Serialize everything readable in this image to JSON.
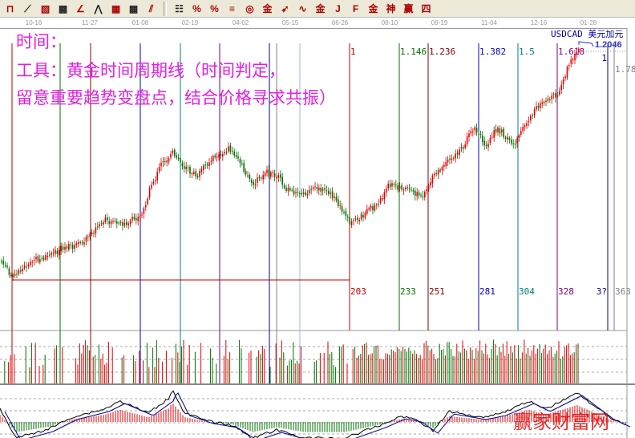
{
  "toolbar": {
    "buttons": [
      {
        "name": "cursor-tool",
        "glyph": "⊓"
      },
      {
        "name": "fan-line-tool",
        "glyph": "⟋"
      },
      {
        "name": "gann-box-tool",
        "glyph": "▧"
      },
      {
        "name": "gann-grid-tool",
        "glyph": "▩"
      },
      {
        "name": "angle-line-tool",
        "glyph": "∠"
      },
      {
        "name": "zigzag-tool",
        "glyph": "⋀"
      },
      {
        "name": "grid-tool",
        "glyph": "▦"
      },
      {
        "name": "grid2-tool",
        "glyph": "▦"
      },
      {
        "name": "parallel-lines-tool",
        "glyph": "⫽"
      },
      {
        "name": "period-lines-tool",
        "glyph": "☷"
      },
      {
        "name": "percent-fan-tool",
        "glyph": "%"
      },
      {
        "name": "percent-tool",
        "glyph": "%"
      },
      {
        "name": "percent-lines-tool",
        "glyph": "≡"
      },
      {
        "name": "golden-circle-tool",
        "glyph": "◎"
      },
      {
        "name": "golden-lines-tool",
        "glyph": "金"
      },
      {
        "name": "arrow-tool",
        "glyph": "➶"
      },
      {
        "name": "wave-tool",
        "glyph": "∿"
      },
      {
        "name": "golden-ratio-tool",
        "glyph": "金"
      },
      {
        "name": "j-lines-tool",
        "glyph": "J"
      },
      {
        "name": "fib-lines-tool",
        "glyph": "F"
      },
      {
        "name": "golden-fan-tool",
        "glyph": "金"
      },
      {
        "name": "shen-lines-tool",
        "glyph": "神"
      },
      {
        "name": "ying-lines-tool",
        "glyph": "赢"
      },
      {
        "name": "four-lines-tool",
        "glyph": "四"
      }
    ]
  },
  "dates": [
    "10-16",
    "11-27",
    "01-08",
    "02-19",
    "04-02",
    "05-15",
    "06-26",
    "08-10",
    "09-19",
    "11-04",
    "12-16",
    "01-28"
  ],
  "annotation": {
    "line1": "时间：",
    "line2": "工具：黄金时间周期线（时间判定，",
    "line3": "留意重要趋势变盘点，结合价格寻求共振）"
  },
  "symbol": "USDCAD 美元加元",
  "last_price": "1.2046",
  "chart_data": {
    "type": "candlestick",
    "title": "",
    "instrument": "USDCAD",
    "last_close": 1.2046,
    "x_tick_labels": [
      "10-16",
      "11-27",
      "01-08",
      "02-19",
      "04-02",
      "05-15",
      "06-26",
      "08-10",
      "09-19",
      "11-04",
      "12-16",
      "01-28"
    ],
    "time_cycle_lines": [
      {
        "bars": 203,
        "ratio": "1",
        "color": "#c00000"
      },
      {
        "bars": 233,
        "ratio": "1.146",
        "color": "#007000"
      },
      {
        "bars": 251,
        "ratio": "1.236",
        "color": "#800000"
      },
      {
        "bars": 281,
        "ratio": "1.382",
        "color": "#0000c0"
      },
      {
        "bars": 304,
        "ratio": "1.5",
        "color": "#008080"
      },
      {
        "bars": 328,
        "ratio": "1.618",
        "color": "#800080"
      },
      {
        "bars": "3?",
        "ratio": "1",
        "color": "#000080"
      },
      {
        "bars": 363,
        "ratio": "1.78",
        "color": "#808080"
      }
    ],
    "panels": [
      "price",
      "volume",
      "oscillator"
    ],
    "up_color": "#e00000",
    "down_color": "#007000",
    "watermark": "赢家财富网"
  }
}
